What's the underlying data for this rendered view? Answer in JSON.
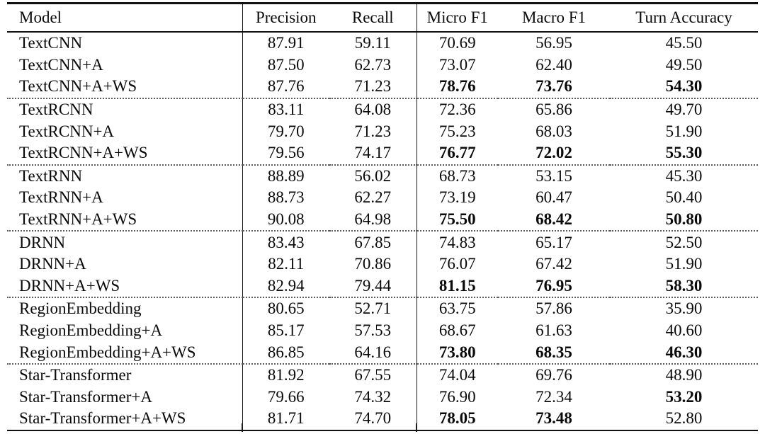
{
  "table": {
    "columns": [
      {
        "key": "model",
        "label": "Model"
      },
      {
        "key": "precision",
        "label": "Precision"
      },
      {
        "key": "recall",
        "label": "Recall"
      },
      {
        "key": "micro_f1",
        "label": "Micro F1"
      },
      {
        "key": "macro_f1",
        "label": "Macro F1"
      },
      {
        "key": "turn_accuracy",
        "label": "Turn Accuracy"
      }
    ],
    "rows": [
      {
        "cells": {
          "model": "TextCNN",
          "precision": "87.91",
          "recall": "59.11",
          "micro_f1": "70.69",
          "macro_f1": "56.95",
          "turn_accuracy": "45.50"
        },
        "bold": [],
        "group_start": false
      },
      {
        "cells": {
          "model": "TextCNN+A",
          "precision": "87.50",
          "recall": "62.73",
          "micro_f1": "73.07",
          "macro_f1": "62.40",
          "turn_accuracy": "49.50"
        },
        "bold": [],
        "group_start": false
      },
      {
        "cells": {
          "model": "TextCNN+A+WS",
          "precision": "87.76",
          "recall": "71.23",
          "micro_f1": "78.76",
          "macro_f1": "73.76",
          "turn_accuracy": "54.30"
        },
        "bold": [
          "micro_f1",
          "macro_f1",
          "turn_accuracy"
        ],
        "group_start": false
      },
      {
        "cells": {
          "model": "TextRCNN",
          "precision": "83.11",
          "recall": "64.08",
          "micro_f1": "72.36",
          "macro_f1": "65.86",
          "turn_accuracy": "49.70"
        },
        "bold": [],
        "group_start": true
      },
      {
        "cells": {
          "model": "TextRCNN+A",
          "precision": "79.70",
          "recall": "71.23",
          "micro_f1": "75.23",
          "macro_f1": "68.03",
          "turn_accuracy": "51.90"
        },
        "bold": [],
        "group_start": false
      },
      {
        "cells": {
          "model": "TextRCNN+A+WS",
          "precision": "79.56",
          "recall": "74.17",
          "micro_f1": "76.77",
          "macro_f1": "72.02",
          "turn_accuracy": "55.30"
        },
        "bold": [
          "micro_f1",
          "macro_f1",
          "turn_accuracy"
        ],
        "group_start": false
      },
      {
        "cells": {
          "model": "TextRNN",
          "precision": "88.89",
          "recall": "56.02",
          "micro_f1": "68.73",
          "macro_f1": "53.15",
          "turn_accuracy": "45.30"
        },
        "bold": [],
        "group_start": true
      },
      {
        "cells": {
          "model": "TextRNN+A",
          "precision": "88.73",
          "recall": "62.27",
          "micro_f1": "73.19",
          "macro_f1": "60.47",
          "turn_accuracy": "50.40"
        },
        "bold": [],
        "group_start": false
      },
      {
        "cells": {
          "model": "TextRNN+A+WS",
          "precision": "90.08",
          "recall": "64.98",
          "micro_f1": "75.50",
          "macro_f1": "68.42",
          "turn_accuracy": "50.80"
        },
        "bold": [
          "micro_f1",
          "macro_f1",
          "turn_accuracy"
        ],
        "group_start": false
      },
      {
        "cells": {
          "model": "DRNN",
          "precision": "83.43",
          "recall": "67.85",
          "micro_f1": "74.83",
          "macro_f1": "65.17",
          "turn_accuracy": "52.50"
        },
        "bold": [],
        "group_start": true
      },
      {
        "cells": {
          "model": "DRNN+A",
          "precision": "82.11",
          "recall": "70.86",
          "micro_f1": "76.07",
          "macro_f1": "67.42",
          "turn_accuracy": "51.90"
        },
        "bold": [],
        "group_start": false
      },
      {
        "cells": {
          "model": "DRNN+A+WS",
          "precision": "82.94",
          "recall": "79.44",
          "micro_f1": "81.15",
          "macro_f1": "76.95",
          "turn_accuracy": "58.30"
        },
        "bold": [
          "micro_f1",
          "macro_f1",
          "turn_accuracy"
        ],
        "group_start": false
      },
      {
        "cells": {
          "model": "RegionEmbedding",
          "precision": "80.65",
          "recall": "52.71",
          "micro_f1": "63.75",
          "macro_f1": "57.86",
          "turn_accuracy": "35.90"
        },
        "bold": [],
        "group_start": true
      },
      {
        "cells": {
          "model": "RegionEmbedding+A",
          "precision": "85.17",
          "recall": "57.53",
          "micro_f1": "68.67",
          "macro_f1": "61.63",
          "turn_accuracy": "40.60"
        },
        "bold": [],
        "group_start": false
      },
      {
        "cells": {
          "model": "RegionEmbedding+A+WS",
          "precision": "86.85",
          "recall": "64.16",
          "micro_f1": "73.80",
          "macro_f1": "68.35",
          "turn_accuracy": "46.30"
        },
        "bold": [
          "micro_f1",
          "macro_f1",
          "turn_accuracy"
        ],
        "group_start": false
      },
      {
        "cells": {
          "model": "Star-Transformer",
          "precision": "81.92",
          "recall": "67.55",
          "micro_f1": "74.04",
          "macro_f1": "69.76",
          "turn_accuracy": "48.90"
        },
        "bold": [],
        "group_start": true
      },
      {
        "cells": {
          "model": "Star-Transformer+A",
          "precision": "79.66",
          "recall": "74.32",
          "micro_f1": "76.90",
          "macro_f1": "72.34",
          "turn_accuracy": "53.20"
        },
        "bold": [
          "turn_accuracy"
        ],
        "group_start": false
      },
      {
        "cells": {
          "model": "Star-Transformer+A+WS",
          "precision": "81.71",
          "recall": "74.70",
          "micro_f1": "78.05",
          "macro_f1": "73.48",
          "turn_accuracy": "52.80"
        },
        "bold": [
          "micro_f1",
          "macro_f1"
        ],
        "group_start": false
      }
    ]
  },
  "chart_data": {
    "type": "table",
    "columns": [
      "Model",
      "Precision",
      "Recall",
      "Micro F1",
      "Macro F1",
      "Turn Accuracy"
    ],
    "rows": [
      [
        "TextCNN",
        87.91,
        59.11,
        70.69,
        56.95,
        45.5
      ],
      [
        "TextCNN+A",
        87.5,
        62.73,
        73.07,
        62.4,
        49.5
      ],
      [
        "TextCNN+A+WS",
        87.76,
        71.23,
        78.76,
        73.76,
        54.3
      ],
      [
        "TextRCNN",
        83.11,
        64.08,
        72.36,
        65.86,
        49.7
      ],
      [
        "TextRCNN+A",
        79.7,
        71.23,
        75.23,
        68.03,
        51.9
      ],
      [
        "TextRCNN+A+WS",
        79.56,
        74.17,
        76.77,
        72.02,
        55.3
      ],
      [
        "TextRNN",
        88.89,
        56.02,
        68.73,
        53.15,
        45.3
      ],
      [
        "TextRNN+A",
        88.73,
        62.27,
        73.19,
        60.47,
        50.4
      ],
      [
        "TextRNN+A+WS",
        90.08,
        64.98,
        75.5,
        68.42,
        50.8
      ],
      [
        "DRNN",
        83.43,
        67.85,
        74.83,
        65.17,
        52.5
      ],
      [
        "DRNN+A",
        82.11,
        70.86,
        76.07,
        67.42,
        51.9
      ],
      [
        "DRNN+A+WS",
        82.94,
        79.44,
        81.15,
        76.95,
        58.3
      ],
      [
        "RegionEmbedding",
        80.65,
        52.71,
        63.75,
        57.86,
        35.9
      ],
      [
        "RegionEmbedding+A",
        85.17,
        57.53,
        68.67,
        61.63,
        40.6
      ],
      [
        "RegionEmbedding+A+WS",
        86.85,
        64.16,
        73.8,
        68.35,
        46.3
      ],
      [
        "Star-Transformer",
        81.92,
        67.55,
        74.04,
        69.76,
        48.9
      ],
      [
        "Star-Transformer+A",
        79.66,
        74.32,
        76.9,
        72.34,
        53.2
      ],
      [
        "Star-Transformer+A+WS",
        81.71,
        74.7,
        78.05,
        73.48,
        52.8
      ]
    ]
  }
}
